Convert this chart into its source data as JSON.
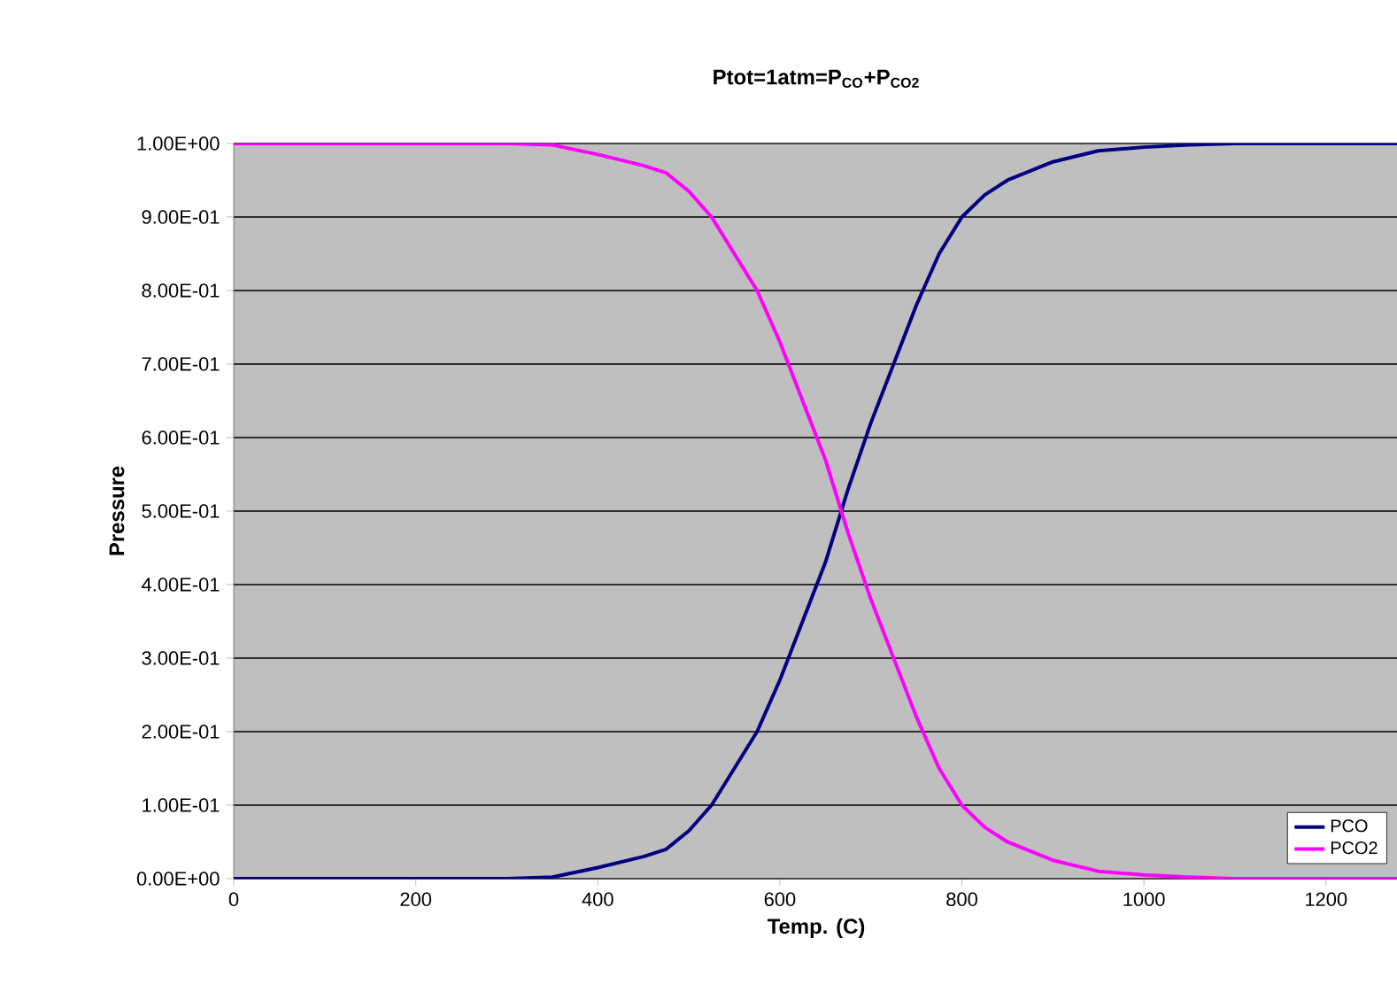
{
  "chart_data": {
    "type": "line",
    "title": "Ptot=1atm=P$_{CO}$+P$_{CO2}$",
    "xlabel": "Temp. (C)",
    "ylabel": "Pressure",
    "x": [
      0,
      100,
      200,
      300,
      350,
      400,
      450,
      475,
      500,
      525,
      550,
      575,
      600,
      625,
      650,
      675,
      700,
      725,
      750,
      775,
      800,
      825,
      850,
      900,
      950,
      1000,
      1050,
      1100,
      1200,
      1280
    ],
    "series": [
      {
        "name": "PCO",
        "color": "#000080",
        "values": [
          0,
          0,
          0,
          0,
          0.002,
          0.015,
          0.03,
          0.04,
          0.065,
          0.1,
          0.15,
          0.2,
          0.27,
          0.35,
          0.43,
          0.53,
          0.62,
          0.7,
          0.78,
          0.85,
          0.9,
          0.93,
          0.95,
          0.975,
          0.99,
          0.995,
          0.998,
          1,
          1,
          1
        ]
      },
      {
        "name": "PCO2",
        "color": "#ff00ff",
        "values": [
          1,
          1,
          1,
          1,
          0.998,
          0.985,
          0.97,
          0.96,
          0.935,
          0.9,
          0.85,
          0.8,
          0.73,
          0.65,
          0.57,
          0.47,
          0.38,
          0.3,
          0.22,
          0.15,
          0.1,
          0.07,
          0.05,
          0.025,
          0.01,
          0.005,
          0.002,
          0,
          0,
          0
        ]
      }
    ],
    "xlim": [
      0,
      1280
    ],
    "xticks": [
      0,
      200,
      400,
      600,
      800,
      1000,
      1200
    ],
    "ylim": [
      0,
      1
    ],
    "yticks": [
      {
        "value": 0,
        "label": "0.00E+00"
      },
      {
        "value": 0.1,
        "label": "1.00E-01"
      },
      {
        "value": 0.2,
        "label": "2.00E-01"
      },
      {
        "value": 0.3,
        "label": "3.00E-01"
      },
      {
        "value": 0.4,
        "label": "4.00E-01"
      },
      {
        "value": 0.5,
        "label": "5.00E-01"
      },
      {
        "value": 0.6,
        "label": "6.00E-01"
      },
      {
        "value": 0.7,
        "label": "7.00E-01"
      },
      {
        "value": 0.8,
        "label": "8.00E-01"
      },
      {
        "value": 0.9,
        "label": "9.00E-01"
      },
      {
        "value": 1,
        "label": "1.00E+00"
      }
    ],
    "grid": "y",
    "legend": "bottom right",
    "marker": "none",
    "line_style": "solid"
  }
}
